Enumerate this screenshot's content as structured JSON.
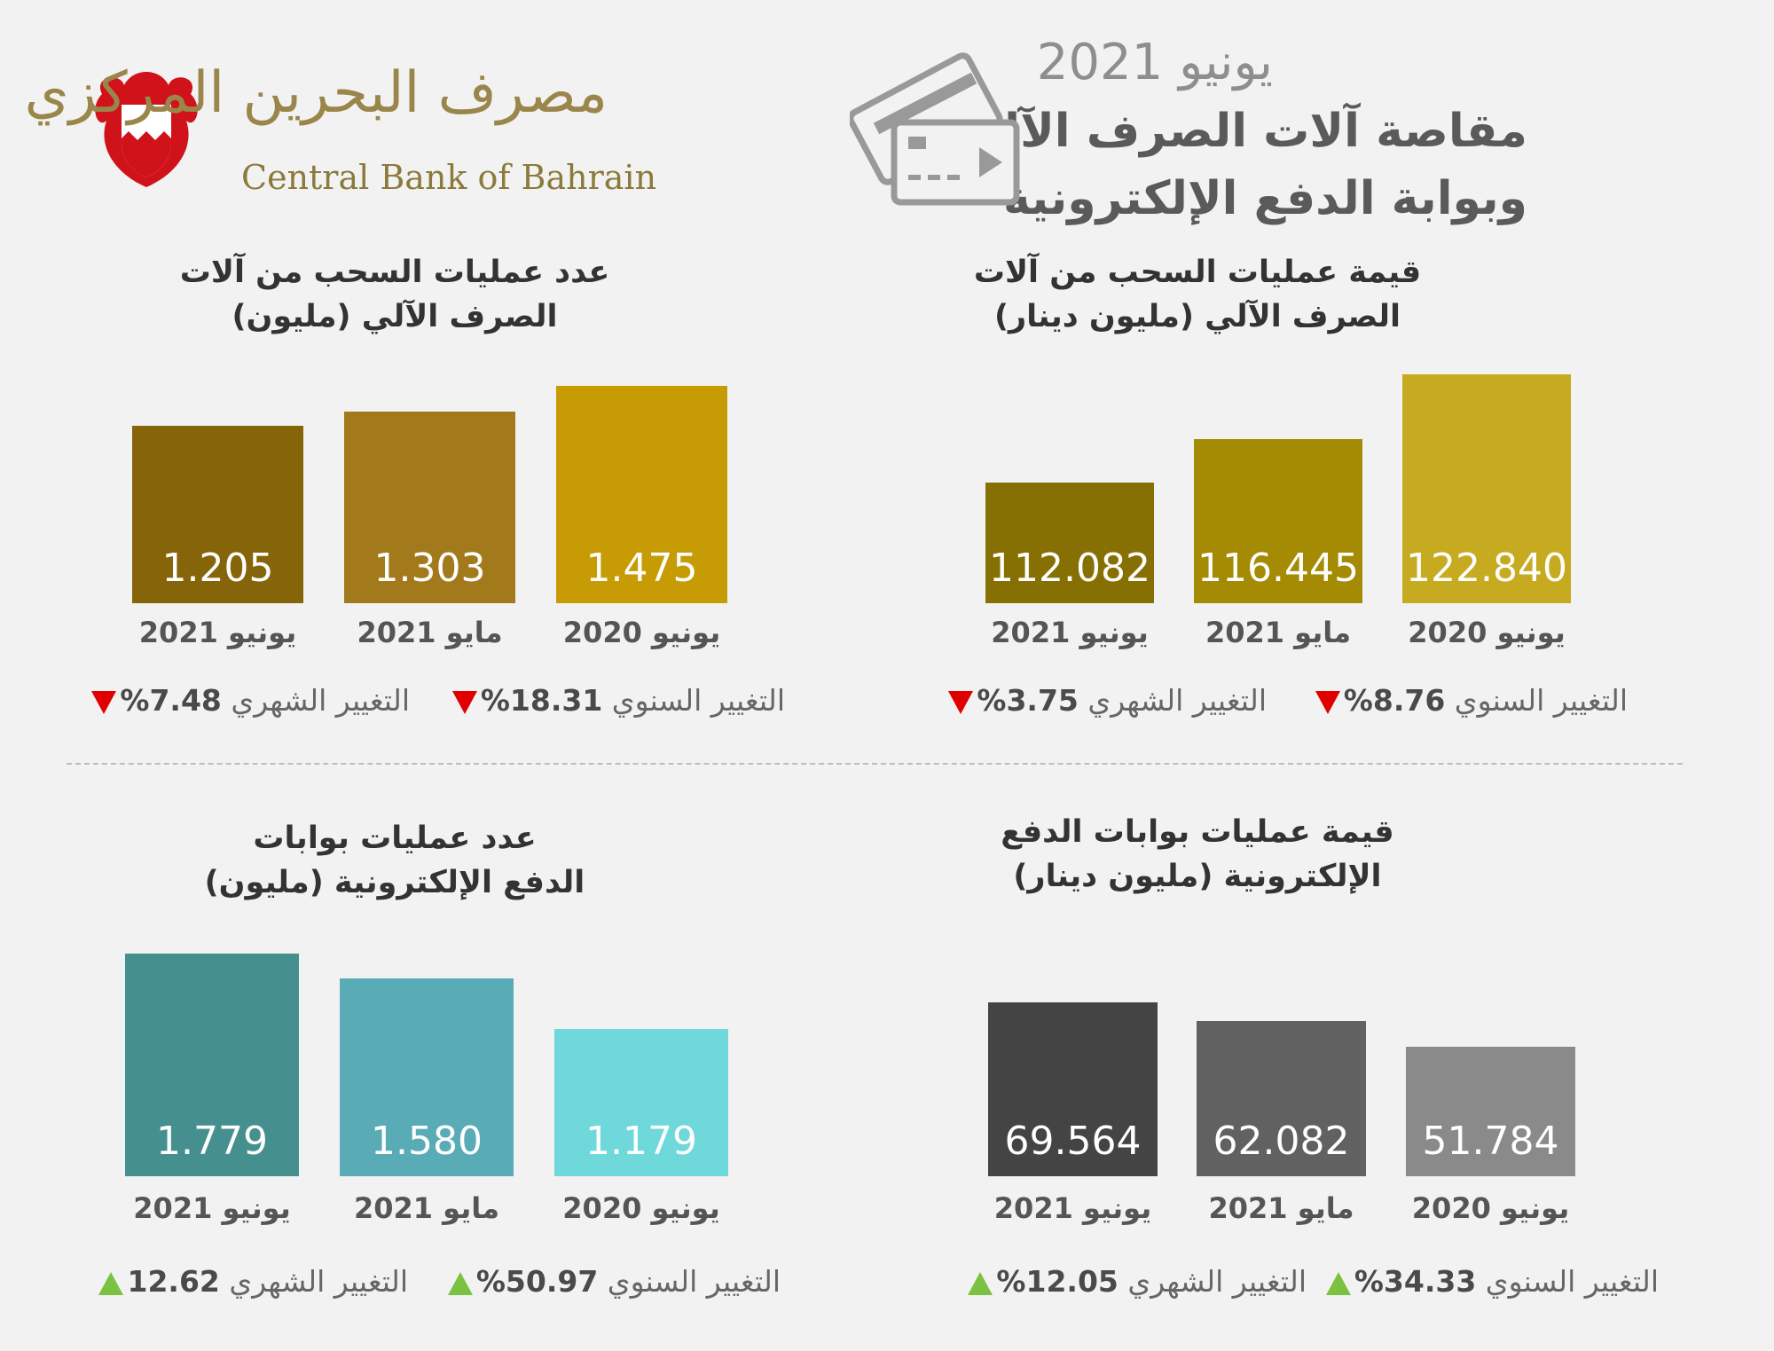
{
  "header": {
    "date": "يونيو 2021",
    "title_line1": "مقاصة آلات الصرف الآلي",
    "title_line2": "وبوابة الدفع الإلكترونية"
  },
  "logo": {
    "name_ar": "مصرف البحرين المركزي",
    "name_en": "Central Bank of Bahrain"
  },
  "chart_data": [
    {
      "type": "bar",
      "title": "قيمة عمليات السحب من آلات الصرف الآلي (مليون دينار)",
      "title_line1": "قيمة عمليات السحب من آلات",
      "title_line2": "الصرف الآلي (مليون دينار)",
      "categories": [
        "يونيو 2021",
        "مايو 2021",
        "يونيو 2020"
      ],
      "values": [
        112.082,
        116.445,
        122.84
      ],
      "value_labels": [
        "112.082",
        "116.445",
        "122.840"
      ],
      "colors": [
        "#877003",
        "#a48b03",
        "#c6aa20"
      ],
      "ylim": [
        100,
        125
      ],
      "monthly_change": {
        "label": "التغيير الشهري",
        "value": "3.75%",
        "direction": "down"
      },
      "annual_change": {
        "label": "التغيير السنوي",
        "value": "8.76%",
        "direction": "down"
      }
    },
    {
      "type": "bar",
      "title": "عدد عمليات السحب من آلات الصرف الآلي (مليون)",
      "title_line1": "عدد عمليات السحب من آلات",
      "title_line2": "الصرف الآلي (مليون)",
      "categories": [
        "يونيو 2021",
        "مايو 2021",
        "يونيو 2020"
      ],
      "values": [
        1.205,
        1.303,
        1.475
      ],
      "value_labels": [
        "1.205",
        "1.303",
        "1.475"
      ],
      "colors": [
        "#866409",
        "#a27a1c",
        "#c79b04"
      ],
      "ylim": [
        0,
        1.7
      ],
      "monthly_change": {
        "label": "التغيير الشهري",
        "value": "7.48%",
        "direction": "down"
      },
      "annual_change": {
        "label": "التغيير السنوي",
        "value": "18.31%",
        "direction": "down"
      }
    },
    {
      "type": "bar",
      "title": "قيمة عمليات بوابات الدفع الإلكترونية (مليون دينار)",
      "title_line1": "قيمة عمليات بوابات الدفع",
      "title_line2": "الإلكترونية (مليون دينار)",
      "categories": [
        "يونيو 2021",
        "مايو 2021",
        "يونيو 2020"
      ],
      "values": [
        69.564,
        62.082,
        51.784
      ],
      "value_labels": [
        "69.564",
        "62.082",
        "51.784"
      ],
      "colors": [
        "#444444",
        "#616161",
        "#8a8a8a"
      ],
      "ylim": [
        0,
        100
      ],
      "monthly_change": {
        "label": "التغيير الشهري",
        "value": "12.05%",
        "direction": "up"
      },
      "annual_change": {
        "label": "التغيير السنوي",
        "value": "34.33%",
        "direction": "up"
      }
    },
    {
      "type": "bar",
      "title": "عدد عمليات بوابات الدفع الإلكترونية (مليون)",
      "title_line1": "عدد عمليات بوابات",
      "title_line2": "الدفع الإلكترونية (مليون)",
      "categories": [
        "يونيو 2021",
        "مايو 2021",
        "يونيو 2020"
      ],
      "values": [
        1.779,
        1.58,
        1.179
      ],
      "value_labels": [
        "1.779",
        "1.580",
        "1.179"
      ],
      "colors": [
        "#45908f",
        "#59acb5",
        "#6fd8db"
      ],
      "ylim": [
        0,
        2.0
      ],
      "monthly_change": {
        "label": "التغيير الشهري",
        "value": "12.62",
        "direction": "up"
      },
      "annual_change": {
        "label": "التغيير السنوي",
        "value": "50.97%",
        "direction": "up"
      }
    }
  ]
}
